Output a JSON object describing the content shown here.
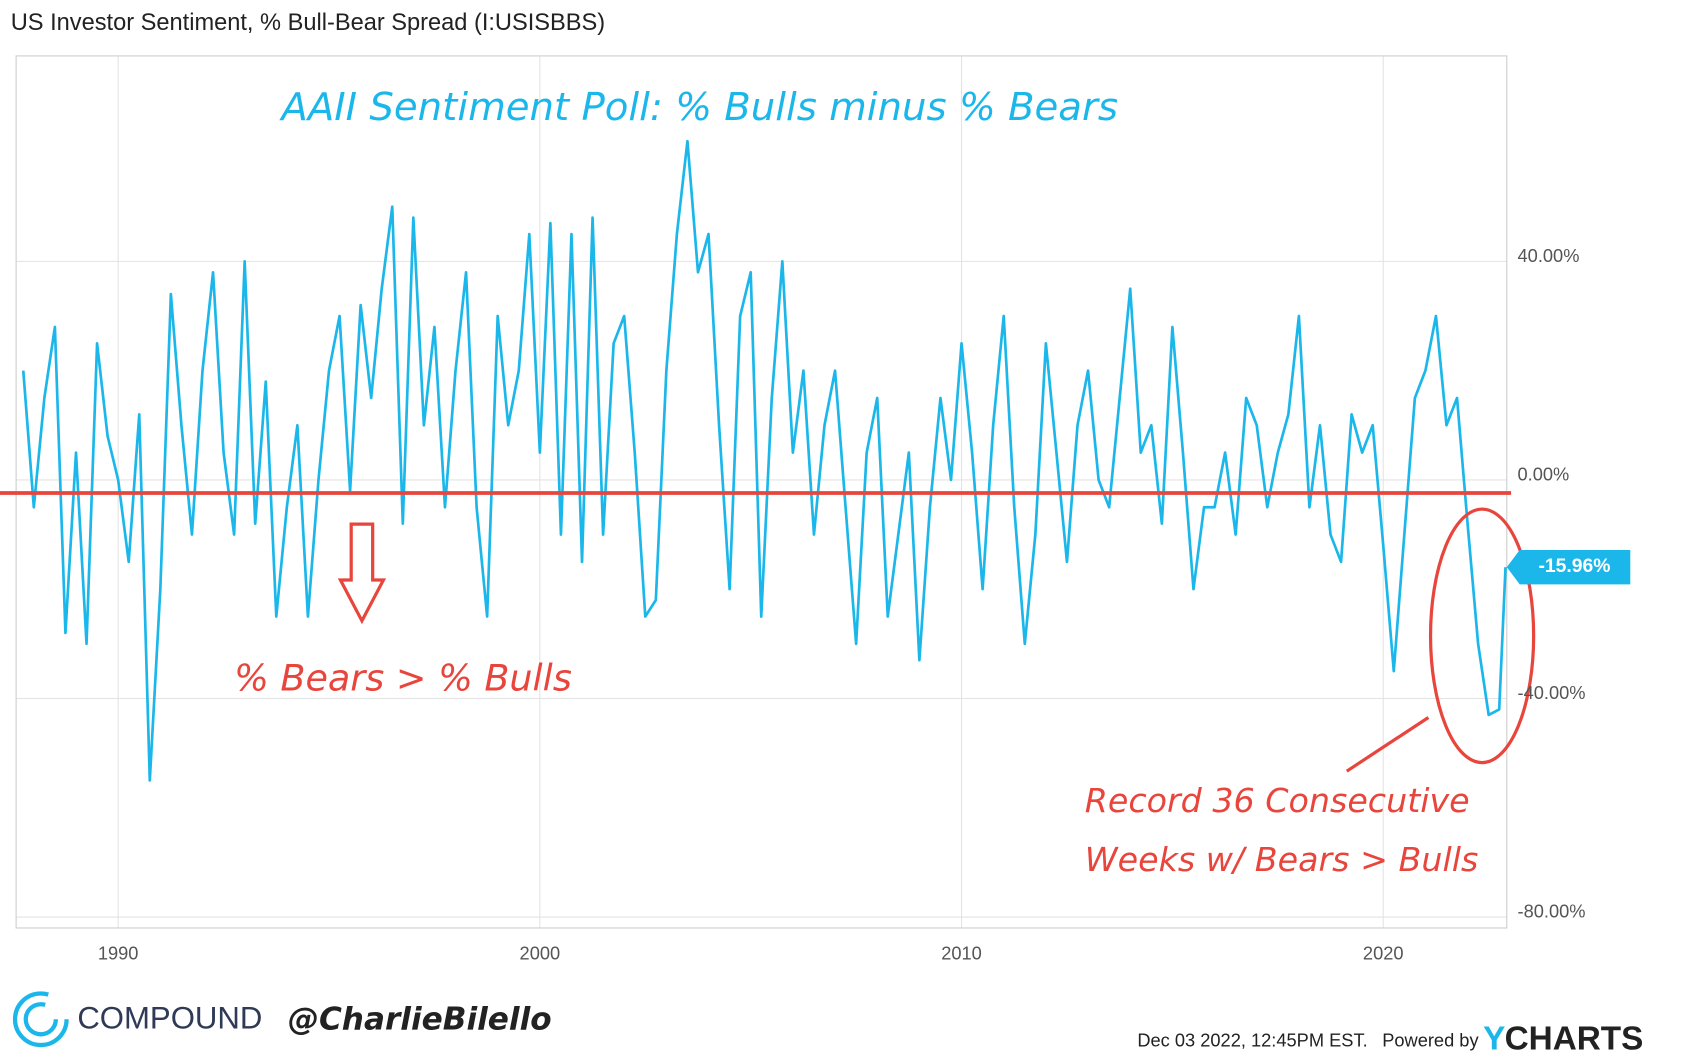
{
  "chart_data": {
    "type": "line",
    "title": "US Investor Sentiment, % Bull-Bear Spread (I:USISBBS)",
    "annotations": [
      "AAII Sentiment Poll: % Bulls minus % Bears",
      "% Bears > % Bulls",
      "Record 36 Consecutive",
      "Weeks w/ Bears > Bulls"
    ],
    "x": [
      1987.75,
      1988,
      1988.25,
      1988.5,
      1988.75,
      1989,
      1989.25,
      1989.5,
      1989.75,
      1990,
      1990.25,
      1990.5,
      1990.75,
      1991,
      1991.25,
      1991.5,
      1991.75,
      1992,
      1992.25,
      1992.5,
      1992.75,
      1993,
      1993.25,
      1993.5,
      1993.75,
      1994,
      1994.25,
      1994.5,
      1994.75,
      1995,
      1995.25,
      1995.5,
      1995.75,
      1996,
      1996.25,
      1996.5,
      1996.75,
      1997,
      1997.25,
      1997.5,
      1997.75,
      1998,
      1998.25,
      1998.5,
      1998.75,
      1999,
      1999.25,
      1999.5,
      1999.75,
      2000,
      2000.25,
      2000.5,
      2000.75,
      2001,
      2001.25,
      2001.5,
      2001.75,
      2002,
      2002.25,
      2002.5,
      2002.75,
      2003,
      2003.25,
      2003.5,
      2003.75,
      2004,
      2004.25,
      2004.5,
      2004.75,
      2005,
      2005.25,
      2005.5,
      2005.75,
      2006,
      2006.25,
      2006.5,
      2006.75,
      2007,
      2007.25,
      2007.5,
      2007.75,
      2008,
      2008.25,
      2008.5,
      2008.75,
      2009,
      2009.25,
      2009.5,
      2009.75,
      2010,
      2010.25,
      2010.5,
      2010.75,
      2011,
      2011.25,
      2011.5,
      2011.75,
      2012,
      2012.25,
      2012.5,
      2012.75,
      2013,
      2013.25,
      2013.5,
      2013.75,
      2014,
      2014.25,
      2014.5,
      2014.75,
      2015,
      2015.25,
      2015.5,
      2015.75,
      2016,
      2016.25,
      2016.5,
      2016.75,
      2017,
      2017.25,
      2017.5,
      2017.75,
      2018,
      2018.25,
      2018.5,
      2018.75,
      2019,
      2019.25,
      2019.5,
      2019.75,
      2020,
      2020.25,
      2020.5,
      2020.75,
      2021,
      2021.25,
      2021.5,
      2021.75,
      2022,
      2022.25,
      2022.5,
      2022.75,
      2022.9
    ],
    "series": [
      {
        "name": "US Investor Sentiment, % Bull-Bear Spread",
        "color": "#1cb7ea",
        "values": [
          20,
          -5,
          15,
          28,
          -28,
          5,
          -30,
          25,
          8,
          0,
          -15,
          12,
          -55,
          -20,
          34,
          10,
          -10,
          20,
          38,
          5,
          -10,
          40,
          -8,
          18,
          -25,
          -5,
          10,
          -25,
          0,
          20,
          30,
          -2,
          32,
          15,
          35,
          50,
          -8,
          48,
          10,
          28,
          -5,
          20,
          38,
          -5,
          -25,
          30,
          10,
          20,
          45,
          5,
          47,
          -10,
          45,
          -15,
          48,
          -10,
          25,
          30,
          5,
          -25,
          -22,
          20,
          45,
          62,
          38,
          45,
          10,
          -20,
          30,
          38,
          -25,
          15,
          40,
          5,
          20,
          -10,
          10,
          20,
          -5,
          -30,
          5,
          15,
          -25,
          -10,
          5,
          -33,
          -5,
          15,
          0,
          25,
          5,
          -20,
          10,
          30,
          -5,
          -30,
          -10,
          25,
          5,
          -15,
          10,
          20,
          0,
          -5,
          15,
          35,
          5,
          10,
          -8,
          28,
          5,
          -20,
          -5,
          -5,
          5,
          -10,
          15,
          10,
          -5,
          5,
          12,
          30,
          -5,
          10,
          -10,
          -15,
          12,
          5,
          10,
          -12,
          -35,
          -10,
          15,
          20,
          30,
          10,
          15,
          -8,
          -30,
          -43,
          -42,
          -15.96
        ]
      }
    ],
    "current_value": {
      "value": -15.96,
      "label": "-15.96%",
      "color": "#1cb7ea"
    },
    "reference_line": {
      "value": -2.4,
      "color": "#e8453c"
    },
    "xlim": [
      1987.58,
      2022.93
    ],
    "xticks": [
      1990,
      2000,
      2010,
      2020
    ],
    "ylim": [
      -82,
      77.6
    ],
    "yticks": [
      {
        "value": 40,
        "label": "40.00%"
      },
      {
        "value": 0,
        "label": "0.00%"
      },
      {
        "value": -40,
        "label": "-40.00%"
      },
      {
        "value": -80,
        "label": "-80.00%"
      }
    ],
    "grid": true
  },
  "footer": {
    "brand": "COMPOUND",
    "handle": "@CharlieBilello",
    "timestamp": "Dec 03 2022, 12:45PM EST.",
    "powered": "Powered by",
    "logo_y": "Y",
    "logo_rest": "CHARTS"
  }
}
